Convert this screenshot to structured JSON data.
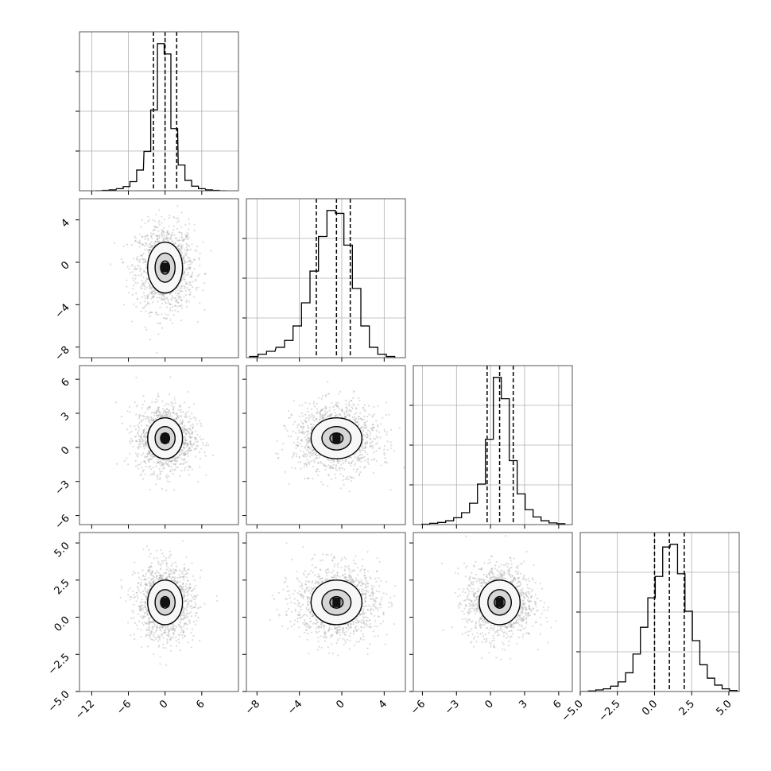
{
  "chart_data": {
    "type": "corner",
    "dim": 4,
    "grid": true,
    "colors": {
      "line": "#000000",
      "grid": "#b0b0b0",
      "points": "#9a9a9a",
      "frame": "#555555"
    },
    "params": [
      {
        "mean": 0.0,
        "sd": 1.9,
        "q": [
          -1.9,
          0.0,
          1.9
        ],
        "lim": [
          -14,
          12
        ],
        "ticks": [
          -12,
          -6,
          0,
          6
        ],
        "tick_labels": [
          "−12",
          "−6",
          "0",
          "6"
        ]
      },
      {
        "mean": -0.5,
        "sd": 1.6,
        "q": [
          -2.4,
          -0.5,
          0.8
        ],
        "lim": [
          -9,
          6
        ],
        "ticks": [
          -8,
          -4,
          0,
          4
        ],
        "tick_labels": [
          "−8",
          "−4",
          "0",
          "4"
        ]
      },
      {
        "mean": 0.8,
        "sd": 1.2,
        "q": [
          -0.3,
          0.8,
          2.0
        ],
        "lim": [
          -6.8,
          7.2
        ],
        "ticks": [
          -6,
          -3,
          0,
          3,
          6
        ],
        "tick_labels": [
          "−6",
          "−3",
          "0",
          "3",
          "6"
        ]
      },
      {
        "mean": 1.0,
        "sd": 1.0,
        "q": [
          0.0,
          1.0,
          2.0
        ],
        "lim": [
          -5.0,
          5.7
        ],
        "ticks": [
          -5.0,
          -2.5,
          0.0,
          2.5,
          5.0
        ],
        "tick_labels": [
          "−5.0",
          "−2.5",
          "0.0",
          "2.5",
          "5.0"
        ]
      }
    ],
    "histograms": [
      {
        "x": [
          -10.8,
          -9.7,
          -8.6,
          -7.4,
          -6.3,
          -5.2,
          -4.1,
          -2.9,
          -1.8,
          -0.7,
          0.4,
          1.5,
          2.7,
          3.8,
          4.9,
          6.0,
          7.2,
          8.3,
          9.4
        ],
        "y": [
          0,
          1,
          2,
          5,
          10,
          22,
          50,
          95,
          195,
          355,
          330,
          150,
          62,
          25,
          11,
          5,
          2,
          1,
          0
        ]
      },
      {
        "x": [
          -8.3,
          -7.5,
          -6.7,
          -5.8,
          -5.0,
          -4.2,
          -3.4,
          -2.6,
          -1.8,
          -1.0,
          -0.2,
          0.6,
          1.4,
          2.2,
          3.0,
          3.8,
          4.6
        ],
        "y": [
          2,
          6,
          11,
          18,
          30,
          55,
          95,
          150,
          210,
          255,
          250,
          195,
          120,
          55,
          18,
          6,
          2
        ]
      },
      {
        "x": [
          -5.7,
          -5.0,
          -4.3,
          -3.6,
          -2.9,
          -2.2,
          -1.5,
          -0.8,
          -0.1,
          0.6,
          1.3,
          2.0,
          2.7,
          3.4,
          4.1,
          4.8,
          5.5,
          6.2
        ],
        "y": [
          1,
          3,
          5,
          9,
          16,
          28,
          50,
          95,
          200,
          345,
          295,
          150,
          72,
          35,
          18,
          9,
          4,
          2
        ]
      },
      {
        "x": [
          -4.7,
          -4.2,
          -3.7,
          -3.2,
          -2.7,
          -2.2,
          -1.7,
          -1.2,
          -0.7,
          -0.2,
          0.3,
          0.8,
          1.3,
          1.8,
          2.3,
          2.8,
          3.3,
          3.8,
          4.3,
          4.8,
          5.3
        ],
        "y": [
          0,
          1,
          3,
          5,
          10,
          18,
          35,
          70,
          120,
          175,
          215,
          270,
          275,
          220,
          150,
          95,
          50,
          25,
          12,
          5,
          2
        ]
      }
    ],
    "contour_levels": [
      0.39,
      0.86,
      1.5
    ]
  }
}
